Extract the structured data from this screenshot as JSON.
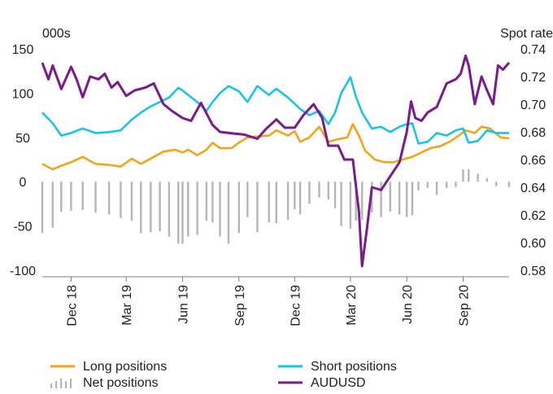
{
  "chart_data": {
    "type": "line",
    "title": "",
    "left_axis": {
      "unit_label": "000s",
      "range": [
        -100,
        150
      ],
      "ticks": [
        150,
        100,
        50,
        0,
        -50,
        -100
      ]
    },
    "right_axis": {
      "unit_label": "Spot rate",
      "range": [
        0.58,
        0.74
      ],
      "ticks": [
        "0.74",
        "0.72",
        "0.70",
        "0.68",
        "0.66",
        "0.64",
        "0.62",
        "0.60",
        "0.58"
      ]
    },
    "x_axis": {
      "start": "2018-10-15",
      "end": "2020-11-15",
      "tick_labels": [
        {
          "label": "Dec 18",
          "date": "2018-12-01"
        },
        {
          "label": "Mar 19",
          "date": "2019-03-01"
        },
        {
          "label": "Jun 19",
          "date": "2019-06-01"
        },
        {
          "label": "Sep 19",
          "date": "2019-09-01"
        },
        {
          "label": "Dec 19",
          "date": "2019-12-01"
        },
        {
          "label": "Mar 20",
          "date": "2020-03-01"
        },
        {
          "label": "Jun 20",
          "date": "2020-06-01"
        },
        {
          "label": "Sep 20",
          "date": "2020-09-01"
        }
      ]
    },
    "grid": false,
    "legend_position": "bottom",
    "series": [
      {
        "name": "Long positions",
        "color": "#f5a31a",
        "axis": "left",
        "kind": "line",
        "points": [
          [
            "2018-10-15",
            20
          ],
          [
            "2018-11-01",
            14
          ],
          [
            "2018-11-15",
            18
          ],
          [
            "2018-12-01",
            22
          ],
          [
            "2018-12-20",
            28
          ],
          [
            "2019-01-10",
            20
          ],
          [
            "2019-02-01",
            19
          ],
          [
            "2019-02-20",
            17
          ],
          [
            "2019-03-10",
            26
          ],
          [
            "2019-03-25",
            20
          ],
          [
            "2019-04-15",
            28
          ],
          [
            "2019-05-01",
            34
          ],
          [
            "2019-05-20",
            36
          ],
          [
            "2019-06-01",
            33
          ],
          [
            "2019-06-10",
            36
          ],
          [
            "2019-06-25",
            30
          ],
          [
            "2019-07-10",
            36
          ],
          [
            "2019-07-20",
            44
          ],
          [
            "2019-08-01",
            38
          ],
          [
            "2019-08-20",
            38
          ],
          [
            "2019-09-01",
            44
          ],
          [
            "2019-09-15",
            50
          ],
          [
            "2019-10-01",
            51
          ],
          [
            "2019-10-20",
            52
          ],
          [
            "2019-11-01",
            58
          ],
          [
            "2019-11-20",
            52
          ],
          [
            "2019-12-01",
            57
          ],
          [
            "2019-12-10",
            45
          ],
          [
            "2019-12-25",
            50
          ],
          [
            "2020-01-10",
            62
          ],
          [
            "2020-01-25",
            45
          ],
          [
            "2020-02-10",
            48
          ],
          [
            "2020-02-25",
            50
          ],
          [
            "2020-03-05",
            65
          ],
          [
            "2020-03-15",
            52
          ],
          [
            "2020-03-25",
            35
          ],
          [
            "2020-04-10",
            25
          ],
          [
            "2020-04-25",
            22
          ],
          [
            "2020-05-10",
            22
          ],
          [
            "2020-05-25",
            25
          ],
          [
            "2020-06-10",
            28
          ],
          [
            "2020-06-25",
            33
          ],
          [
            "2020-07-10",
            38
          ],
          [
            "2020-07-25",
            40
          ],
          [
            "2020-08-10",
            45
          ],
          [
            "2020-08-25",
            52
          ],
          [
            "2020-09-05",
            58
          ],
          [
            "2020-09-20",
            55
          ],
          [
            "2020-10-01",
            62
          ],
          [
            "2020-10-15",
            60
          ],
          [
            "2020-11-01",
            50
          ],
          [
            "2020-11-15",
            49
          ]
        ]
      },
      {
        "name": "Short positions",
        "color": "#19c3ec",
        "axis": "left",
        "kind": "line",
        "points": [
          [
            "2018-10-15",
            78
          ],
          [
            "2018-11-01",
            66
          ],
          [
            "2018-11-15",
            52
          ],
          [
            "2018-12-01",
            55
          ],
          [
            "2018-12-20",
            60
          ],
          [
            "2019-01-10",
            55
          ],
          [
            "2019-02-01",
            56
          ],
          [
            "2019-02-20",
            58
          ],
          [
            "2019-03-10",
            70
          ],
          [
            "2019-03-25",
            78
          ],
          [
            "2019-04-10",
            85
          ],
          [
            "2019-04-25",
            90
          ],
          [
            "2019-05-10",
            95
          ],
          [
            "2019-05-25",
            106
          ],
          [
            "2019-06-01",
            103
          ],
          [
            "2019-06-10",
            98
          ],
          [
            "2019-06-25",
            90
          ],
          [
            "2019-07-10",
            80
          ],
          [
            "2019-07-20",
            90
          ],
          [
            "2019-08-01",
            100
          ],
          [
            "2019-08-15",
            108
          ],
          [
            "2019-09-01",
            102
          ],
          [
            "2019-09-15",
            90
          ],
          [
            "2019-10-01",
            108
          ],
          [
            "2019-10-20",
            98
          ],
          [
            "2019-11-01",
            105
          ],
          [
            "2019-11-20",
            95
          ],
          [
            "2019-12-01",
            88
          ],
          [
            "2019-12-10",
            82
          ],
          [
            "2019-12-25",
            75
          ],
          [
            "2020-01-10",
            80
          ],
          [
            "2020-01-25",
            65
          ],
          [
            "2020-02-05",
            78
          ],
          [
            "2020-02-15",
            100
          ],
          [
            "2020-03-01",
            118
          ],
          [
            "2020-03-10",
            96
          ],
          [
            "2020-03-20",
            78
          ],
          [
            "2020-04-05",
            60
          ],
          [
            "2020-04-20",
            62
          ],
          [
            "2020-05-05",
            56
          ],
          [
            "2020-05-20",
            62
          ],
          [
            "2020-06-01",
            65
          ],
          [
            "2020-06-10",
            66
          ],
          [
            "2020-06-20",
            43
          ],
          [
            "2020-07-05",
            45
          ],
          [
            "2020-07-20",
            55
          ],
          [
            "2020-08-05",
            52
          ],
          [
            "2020-08-20",
            58
          ],
          [
            "2020-09-01",
            60
          ],
          [
            "2020-09-10",
            44
          ],
          [
            "2020-09-25",
            46
          ],
          [
            "2020-10-10",
            58
          ],
          [
            "2020-10-25",
            55
          ],
          [
            "2020-11-15",
            55
          ]
        ]
      },
      {
        "name": "Net positions",
        "color": "#b5b5b5",
        "axis": "left",
        "kind": "bars",
        "points": [
          [
            "2018-10-15",
            -58
          ],
          [
            "2018-11-01",
            -52
          ],
          [
            "2018-11-15",
            -34
          ],
          [
            "2018-12-01",
            -33
          ],
          [
            "2018-12-20",
            -32
          ],
          [
            "2019-01-10",
            -35
          ],
          [
            "2019-02-01",
            -37
          ],
          [
            "2019-02-20",
            -41
          ],
          [
            "2019-03-10",
            -44
          ],
          [
            "2019-03-25",
            -58
          ],
          [
            "2019-04-10",
            -57
          ],
          [
            "2019-04-25",
            -56
          ],
          [
            "2019-05-10",
            -62
          ],
          [
            "2019-05-25",
            -70
          ],
          [
            "2019-06-01",
            -70
          ],
          [
            "2019-06-10",
            -62
          ],
          [
            "2019-06-25",
            -60
          ],
          [
            "2019-07-10",
            -44
          ],
          [
            "2019-07-20",
            -46
          ],
          [
            "2019-08-01",
            -62
          ],
          [
            "2019-08-15",
            -70
          ],
          [
            "2019-09-01",
            -58
          ],
          [
            "2019-09-15",
            -40
          ],
          [
            "2019-10-01",
            -57
          ],
          [
            "2019-10-20",
            -46
          ],
          [
            "2019-11-01",
            -47
          ],
          [
            "2019-11-20",
            -43
          ],
          [
            "2019-12-01",
            -31
          ],
          [
            "2019-12-10",
            -37
          ],
          [
            "2019-12-25",
            -25
          ],
          [
            "2020-01-10",
            -18
          ],
          [
            "2020-01-25",
            -20
          ],
          [
            "2020-02-05",
            -30
          ],
          [
            "2020-02-15",
            -50
          ],
          [
            "2020-03-01",
            -53
          ],
          [
            "2020-03-10",
            -44
          ],
          [
            "2020-03-20",
            -43
          ],
          [
            "2020-04-05",
            -35
          ],
          [
            "2020-04-20",
            -40
          ],
          [
            "2020-05-05",
            -34
          ],
          [
            "2020-05-20",
            -37
          ],
          [
            "2020-06-01",
            -40
          ],
          [
            "2020-06-10",
            -38
          ],
          [
            "2020-06-20",
            -10
          ],
          [
            "2020-07-05",
            -7
          ],
          [
            "2020-07-20",
            -15
          ],
          [
            "2020-08-05",
            -7
          ],
          [
            "2020-08-20",
            -6
          ],
          [
            "2020-09-01",
            14
          ],
          [
            "2020-09-10",
            14
          ],
          [
            "2020-09-25",
            9
          ],
          [
            "2020-10-10",
            4
          ],
          [
            "2020-10-25",
            -5
          ],
          [
            "2020-11-15",
            -6
          ]
        ]
      },
      {
        "name": "AUDUSD",
        "color": "#7a1a8c",
        "axis": "right",
        "kind": "line",
        "points": [
          [
            "2018-10-15",
            0.73
          ],
          [
            "2018-10-25",
            0.718
          ],
          [
            "2018-11-01",
            0.728
          ],
          [
            "2018-11-15",
            0.711
          ],
          [
            "2018-12-01",
            0.727
          ],
          [
            "2018-12-10",
            0.718
          ],
          [
            "2018-12-20",
            0.705
          ],
          [
            "2019-01-01",
            0.72
          ],
          [
            "2019-01-15",
            0.718
          ],
          [
            "2019-01-25",
            0.722
          ],
          [
            "2019-02-05",
            0.712
          ],
          [
            "2019-02-15",
            0.716
          ],
          [
            "2019-03-01",
            0.706
          ],
          [
            "2019-03-15",
            0.71
          ],
          [
            "2019-04-01",
            0.712
          ],
          [
            "2019-04-15",
            0.715
          ],
          [
            "2019-05-01",
            0.7
          ],
          [
            "2019-05-15",
            0.695
          ],
          [
            "2019-06-01",
            0.69
          ],
          [
            "2019-06-15",
            0.688
          ],
          [
            "2019-07-01",
            0.701
          ],
          [
            "2019-07-20",
            0.685
          ],
          [
            "2019-08-01",
            0.68
          ],
          [
            "2019-08-20",
            0.679
          ],
          [
            "2019-09-10",
            0.678
          ],
          [
            "2019-10-01",
            0.675
          ],
          [
            "2019-10-15",
            0.682
          ],
          [
            "2019-11-01",
            0.689
          ],
          [
            "2019-11-15",
            0.683
          ],
          [
            "2019-12-01",
            0.683
          ],
          [
            "2019-12-15",
            0.692
          ],
          [
            "2020-01-01",
            0.7
          ],
          [
            "2020-01-15",
            0.69
          ],
          [
            "2020-01-25",
            0.67
          ],
          [
            "2020-02-10",
            0.67
          ],
          [
            "2020-02-20",
            0.66
          ],
          [
            "2020-03-05",
            0.66
          ],
          [
            "2020-03-15",
            0.622
          ],
          [
            "2020-03-20",
            0.583
          ],
          [
            "2020-03-28",
            0.61
          ],
          [
            "2020-04-05",
            0.64
          ],
          [
            "2020-04-20",
            0.638
          ],
          [
            "2020-05-05",
            0.648
          ],
          [
            "2020-05-20",
            0.658
          ],
          [
            "2020-06-01",
            0.68
          ],
          [
            "2020-06-08",
            0.702
          ],
          [
            "2020-06-15",
            0.69
          ],
          [
            "2020-06-25",
            0.688
          ],
          [
            "2020-07-05",
            0.694
          ],
          [
            "2020-07-20",
            0.698
          ],
          [
            "2020-08-05",
            0.715
          ],
          [
            "2020-08-20",
            0.718
          ],
          [
            "2020-08-28",
            0.722
          ],
          [
            "2020-09-05",
            0.735
          ],
          [
            "2020-09-10",
            0.728
          ],
          [
            "2020-09-20",
            0.7
          ],
          [
            "2020-10-01",
            0.72
          ],
          [
            "2020-10-10",
            0.71
          ],
          [
            "2020-10-20",
            0.7
          ],
          [
            "2020-10-28",
            0.728
          ],
          [
            "2020-11-05",
            0.725
          ],
          [
            "2020-11-15",
            0.73
          ]
        ]
      }
    ]
  }
}
